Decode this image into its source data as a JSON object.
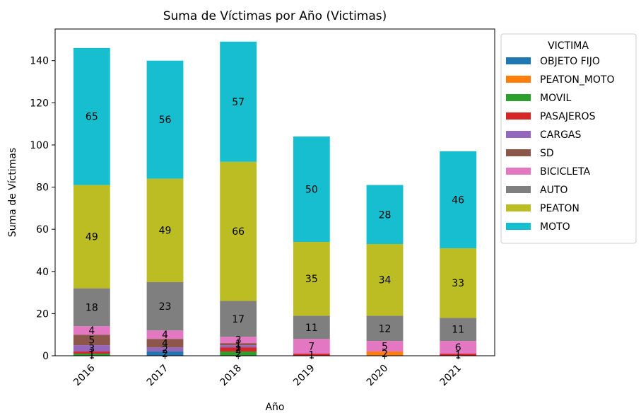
{
  "chart_data": {
    "type": "bar",
    "stacked": true,
    "title": "Suma de Víctimas por Año (Victimas)",
    "xlabel": "Año",
    "ylabel": "Suma de Víctimas",
    "categories": [
      "2016",
      "2017",
      "2018",
      "2019",
      "2020",
      "2021"
    ],
    "ylim": [
      0,
      155
    ],
    "yticks": [
      0,
      20,
      40,
      60,
      80,
      100,
      120,
      140
    ],
    "legend_title": "VICTIMA",
    "legend_position": "outside-right",
    "series": [
      {
        "name": "OBJETO FIJO",
        "color": "#1f77b4",
        "values": [
          0,
          2,
          0,
          0,
          0,
          0
        ]
      },
      {
        "name": "PEATON_MOTO",
        "color": "#ff7f0e",
        "values": [
          0,
          0,
          0,
          0,
          2,
          0
        ]
      },
      {
        "name": "MOVIL",
        "color": "#2ca02c",
        "values": [
          1,
          0,
          2,
          0,
          0,
          0
        ]
      },
      {
        "name": "PASAJEROS",
        "color": "#d62728",
        "values": [
          1,
          0,
          2,
          1,
          0,
          1
        ]
      },
      {
        "name": "CARGAS",
        "color": "#9467bd",
        "values": [
          3,
          2,
          1,
          0,
          0,
          0
        ]
      },
      {
        "name": "SD",
        "color": "#8c564b",
        "values": [
          5,
          4,
          1,
          0,
          0,
          0
        ]
      },
      {
        "name": "BICICLETA",
        "color": "#e377c2",
        "values": [
          4,
          4,
          3,
          7,
          5,
          6
        ]
      },
      {
        "name": "AUTO",
        "color": "#7f7f7f",
        "values": [
          18,
          23,
          17,
          11,
          12,
          11
        ]
      },
      {
        "name": "PEATON",
        "color": "#bcbd22",
        "values": [
          49,
          49,
          66,
          35,
          34,
          33
        ]
      },
      {
        "name": "MOTO",
        "color": "#17becf",
        "values": [
          65,
          56,
          57,
          50,
          28,
          46
        ]
      }
    ]
  }
}
